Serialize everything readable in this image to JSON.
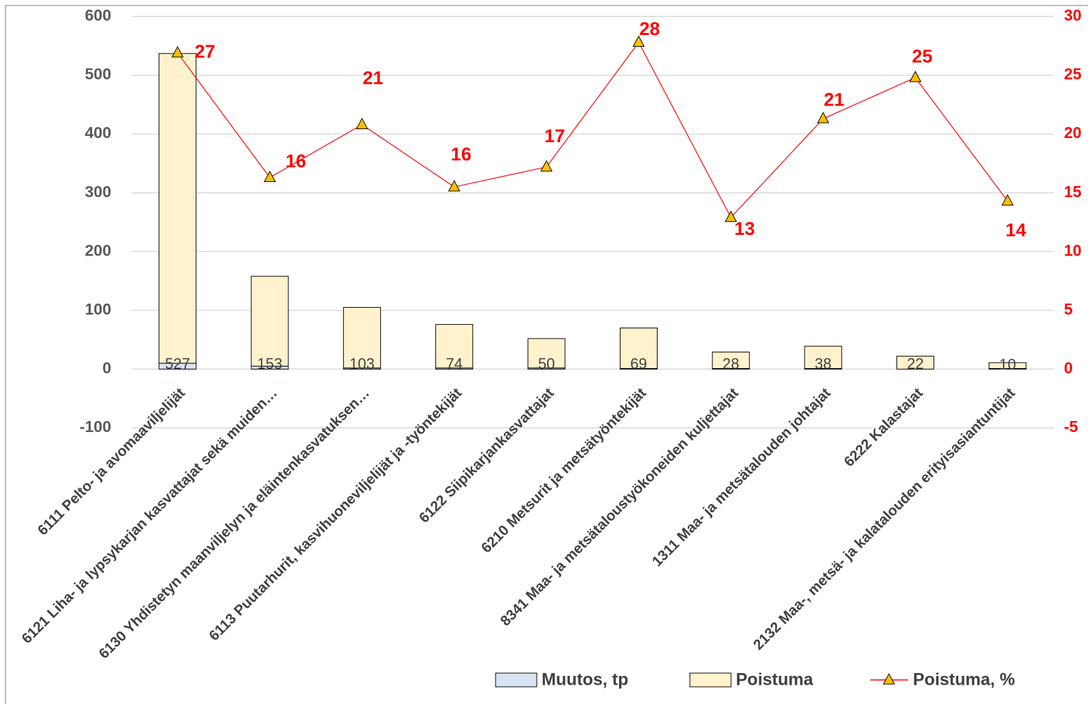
{
  "chart_data": {
    "type": "combo",
    "categories": [
      "6111 Pelto- ja avomaaviljelijät",
      "6121 Liha- ja lypsykarjan kasvattajat sekä muiden…",
      "6130 Yhdistetyn maanviljelyn ja eläintenkasvatuksen…",
      "6113 Puutarhurit, kasvihuoneviljelijät ja -työntekijät",
      "6122 Siipikarjankasvattajat",
      "6210 Metsurit ja metsätyöntekijät",
      "8341 Maa- ja metsätaloustyökoneiden kuljettajat",
      "1311 Maa- ja metsätalouden johtajat",
      "6222 Kalastajat",
      "2132 Maa-, metsä- ja kalatalouden erityisasiantuntijat"
    ],
    "series": [
      {
        "name": "Muutos, tp",
        "color": "#dae3f3",
        "stacked": true,
        "values": [
          10,
          5,
          2,
          2,
          2,
          1,
          1,
          1,
          0,
          1
        ]
      },
      {
        "name": "Poistuma",
        "color": "#fff2cc",
        "stacked": true,
        "values": [
          527,
          153,
          103,
          74,
          50,
          69,
          28,
          38,
          22,
          10
        ]
      },
      {
        "name": "Poistuma, %",
        "color": "#ff0000",
        "axis": "y2",
        "marker_color": "#ffc000",
        "values": [
          26.9,
          16.3,
          20.8,
          15.5,
          17.2,
          27.8,
          12.9,
          21.3,
          24.8,
          14.3
        ],
        "value_labels": [
          "27",
          "16",
          "21",
          "16",
          "17",
          "28",
          "13",
          "21",
          "25",
          "14"
        ]
      }
    ],
    "ylim": [
      -100,
      600
    ],
    "yticks": [
      -100,
      0,
      100,
      200,
      300,
      400,
      500,
      600
    ],
    "y2lim": [
      -5,
      30
    ],
    "y2ticks": [
      -5,
      0,
      5,
      10,
      15,
      20,
      25,
      30
    ],
    "grid": true,
    "legend": "bottom"
  }
}
